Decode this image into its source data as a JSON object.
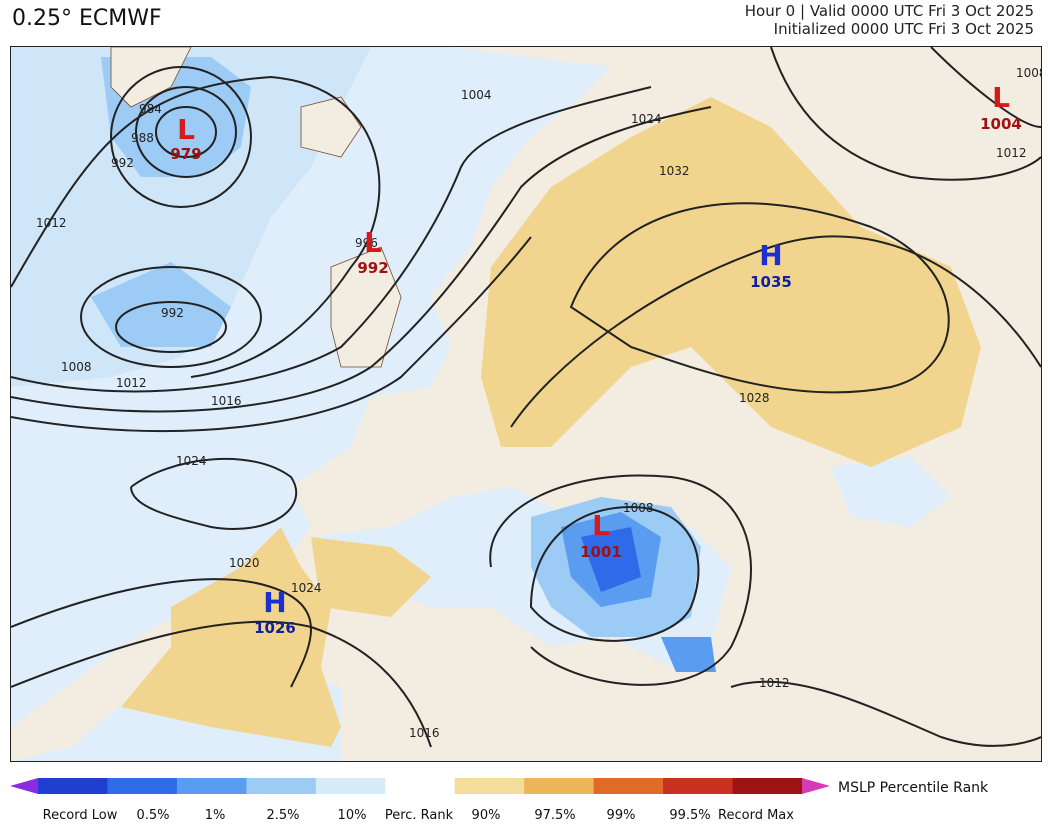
{
  "header": {
    "model": "0.25° ECMWF",
    "line1": "Hour 0 | Valid 0000 UTC Fri 3 Oct 2025",
    "line2": "Initialized 0000 UTC Fri 3 Oct 2025"
  },
  "pressure_centers": [
    {
      "type": "L",
      "value": "979",
      "color": "#d41a1a"
    },
    {
      "type": "L",
      "value": "992",
      "color": "#d41a1a"
    },
    {
      "type": "L",
      "value": "1004",
      "color": "#d41a1a"
    },
    {
      "type": "L",
      "value": "1001",
      "color": "#d41a1a"
    },
    {
      "type": "H",
      "value": "1035",
      "color": "#1a2fd4"
    },
    {
      "type": "H",
      "value": "1026",
      "color": "#1a2fd4"
    }
  ],
  "contour_labels": [
    "984",
    "988",
    "992",
    "1012",
    "1004",
    "996",
    "992",
    "1008",
    "1012",
    "1016",
    "1024",
    "1032",
    "1028",
    "1024",
    "1020",
    "1024",
    "1008",
    "1012",
    "1016",
    "1008",
    "1012"
  ],
  "legend": {
    "title": "MSLP Percentile Rank",
    "ticks": [
      "Record Low",
      "0.5%",
      "1%",
      "2.5%",
      "10%",
      "Perc. Rank",
      "90%",
      "97.5%",
      "99%",
      "99.5%",
      "Record Max"
    ],
    "colors": [
      "#8a2be2",
      "#1f3fd0",
      "#2f6be8",
      "#5a9cf0",
      "#9ccbf5",
      "#d6ecfb",
      "#ffffff",
      "#f4dd9a",
      "#eeb45a",
      "#e06a2a",
      "#c9301f",
      "#9e1414",
      "#d63ab4"
    ]
  },
  "map_colors": {
    "land": "#f3ece1",
    "low_anomaly_light": "#d6ecfb",
    "low_anomaly_mid": "#9ccbf5",
    "low_anomaly_strong": "#5a9cf0",
    "low_anomaly_deep": "#2f6be8",
    "high_anomaly": "#f1d58e",
    "high_anomaly_strong": "#eeb45a"
  }
}
